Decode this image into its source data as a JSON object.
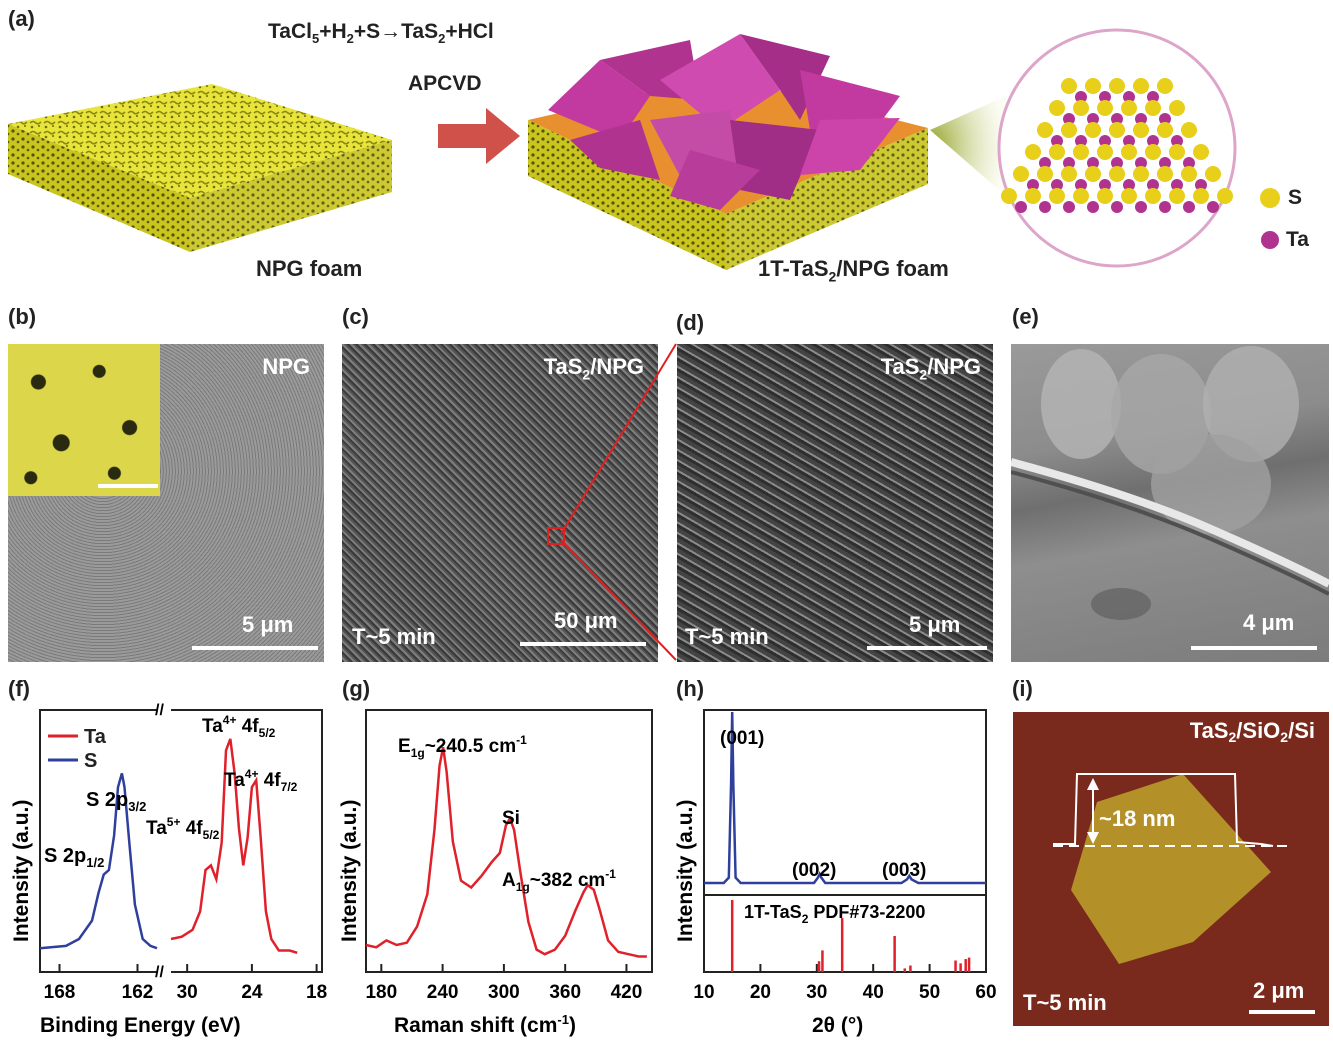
{
  "panels": {
    "a": {
      "label": "(a)",
      "reaction": "TaCl5+H2+S→TaS2+HCl",
      "method": "APCVD",
      "left_caption": "NPG foam",
      "right_caption": "1T-TaS2/NPG foam",
      "legend": [
        {
          "label": "S",
          "color": "#e8cf1a"
        },
        {
          "label": "Ta",
          "color": "#b0338f"
        }
      ]
    },
    "b": {
      "label": "(b)",
      "tag": "NPG",
      "scale": "5 μm"
    },
    "c": {
      "label": "(c)",
      "tag": "TaS2/NPG",
      "time": "T~5 min",
      "scale": "50 μm"
    },
    "d": {
      "label": "(d)",
      "tag": "TaS2/NPG",
      "time": "T~5 min",
      "scale": "5 μm"
    },
    "e": {
      "label": "(e)",
      "scale": "4 μm"
    },
    "i": {
      "label": "(i)",
      "tag": "TaS2/SiO2/Si",
      "time": "T~5 min",
      "scale": "2 μm",
      "height": "~18 nm"
    }
  },
  "chart_data": [
    {
      "panel": "(f)",
      "type": "line",
      "xlabel": "Binding Energy (eV)",
      "ylabel": "Intensity (a.u.)",
      "x_ticks_left": [
        168,
        162
      ],
      "x_ticks_right": [
        30,
        24,
        18
      ],
      "legend": [
        {
          "name": "Ta",
          "color": "#e0202a"
        },
        {
          "name": "S",
          "color": "#2e3f9c"
        }
      ],
      "annotations": [
        "S 2p3/2",
        "S 2p1/2",
        "Ta5+ 4f5/2",
        "Ta4+ 4f5/2",
        "Ta4+ 4f7/2"
      ],
      "series": [
        {
          "name": "S",
          "x": [
            169.5,
            167.5,
            166.5,
            165.5,
            165.0,
            164.6,
            164.2,
            163.8,
            163.5,
            163.2,
            163.0,
            162.6,
            162.2,
            161.6,
            161.0,
            160.5
          ],
          "y": [
            0.06,
            0.07,
            0.1,
            0.18,
            0.3,
            0.38,
            0.4,
            0.55,
            0.76,
            0.82,
            0.76,
            0.5,
            0.25,
            0.1,
            0.07,
            0.06
          ]
        },
        {
          "name": "Ta",
          "x": [
            31.5,
            30.5,
            29.5,
            28.8,
            28.3,
            27.8,
            27.3,
            26.8,
            26.4,
            26.0,
            25.6,
            25.2,
            24.8,
            24.4,
            24.0,
            23.6,
            23.2,
            22.7,
            22.2,
            21.5,
            20.5,
            19.8
          ],
          "y": [
            0.1,
            0.11,
            0.14,
            0.22,
            0.4,
            0.42,
            0.36,
            0.52,
            0.92,
            0.97,
            0.82,
            0.58,
            0.42,
            0.54,
            0.76,
            0.79,
            0.55,
            0.22,
            0.1,
            0.05,
            0.05,
            0.04
          ]
        }
      ]
    },
    {
      "panel": "(g)",
      "type": "line",
      "xlabel": "Raman shift (cm-1)",
      "ylabel": "Intensity (a.u.)",
      "xlim": [
        165,
        445
      ],
      "x_ticks": [
        180,
        240,
        300,
        360,
        420
      ],
      "annotations": [
        "E1g~240.5 cm-1",
        "Si",
        "A1g~382 cm-1"
      ],
      "series": [
        {
          "name": "Raman",
          "color": "#e0202a",
          "x": [
            165,
            175,
            185,
            195,
            205,
            215,
            225,
            232,
            237,
            240.5,
            244,
            250,
            258,
            268,
            278,
            288,
            296,
            302,
            306,
            310,
            316,
            324,
            332,
            340,
            350,
            360,
            370,
            378,
            382,
            388,
            394,
            402,
            412,
            422,
            432,
            440
          ],
          "y": [
            0.1,
            0.09,
            0.12,
            0.1,
            0.11,
            0.18,
            0.32,
            0.6,
            0.88,
            0.96,
            0.85,
            0.55,
            0.38,
            0.35,
            0.4,
            0.46,
            0.5,
            0.62,
            0.65,
            0.6,
            0.42,
            0.2,
            0.08,
            0.06,
            0.08,
            0.14,
            0.25,
            0.33,
            0.36,
            0.34,
            0.25,
            0.12,
            0.07,
            0.06,
            0.05,
            0.05
          ]
        }
      ]
    },
    {
      "panel": "(h)",
      "type": "line",
      "xlabel": "2θ (°)",
      "ylabel": "Intensity (a.u.)",
      "xlim": [
        10,
        60
      ],
      "x_ticks": [
        10,
        20,
        30,
        40,
        50,
        60
      ],
      "annotations": [
        "(001)",
        "(002)",
        "(003)"
      ],
      "reference_label": "1T-TaS2 PDF#73-2200",
      "series": [
        {
          "name": "XRD",
          "color": "#2e3f9c",
          "x": [
            10,
            12,
            13.5,
            14.4,
            14.8,
            15.0,
            15.2,
            15.6,
            16.5,
            20,
            25,
            29.5,
            30.2,
            30.5,
            30.8,
            31.5,
            35,
            40,
            45,
            46.0,
            46.4,
            46.8,
            48,
            55,
            60
          ],
          "y": [
            0.05,
            0.05,
            0.05,
            0.08,
            0.6,
            1.0,
            0.6,
            0.08,
            0.05,
            0.05,
            0.05,
            0.05,
            0.08,
            0.1,
            0.08,
            0.05,
            0.05,
            0.05,
            0.05,
            0.07,
            0.09,
            0.07,
            0.05,
            0.05,
            0.05
          ]
        },
        {
          "name": "PDF#73-2200",
          "color": "#e0202a",
          "x": [
            15.0,
            30.4,
            31.0,
            34.5,
            43.8,
            45.6,
            46.6,
            54.6,
            55.5,
            56.4,
            57.0
          ],
          "y": [
            1.0,
            0.15,
            0.3,
            0.75,
            0.5,
            0.05,
            0.09,
            0.16,
            0.12,
            0.18,
            0.2
          ]
        }
      ]
    }
  ]
}
